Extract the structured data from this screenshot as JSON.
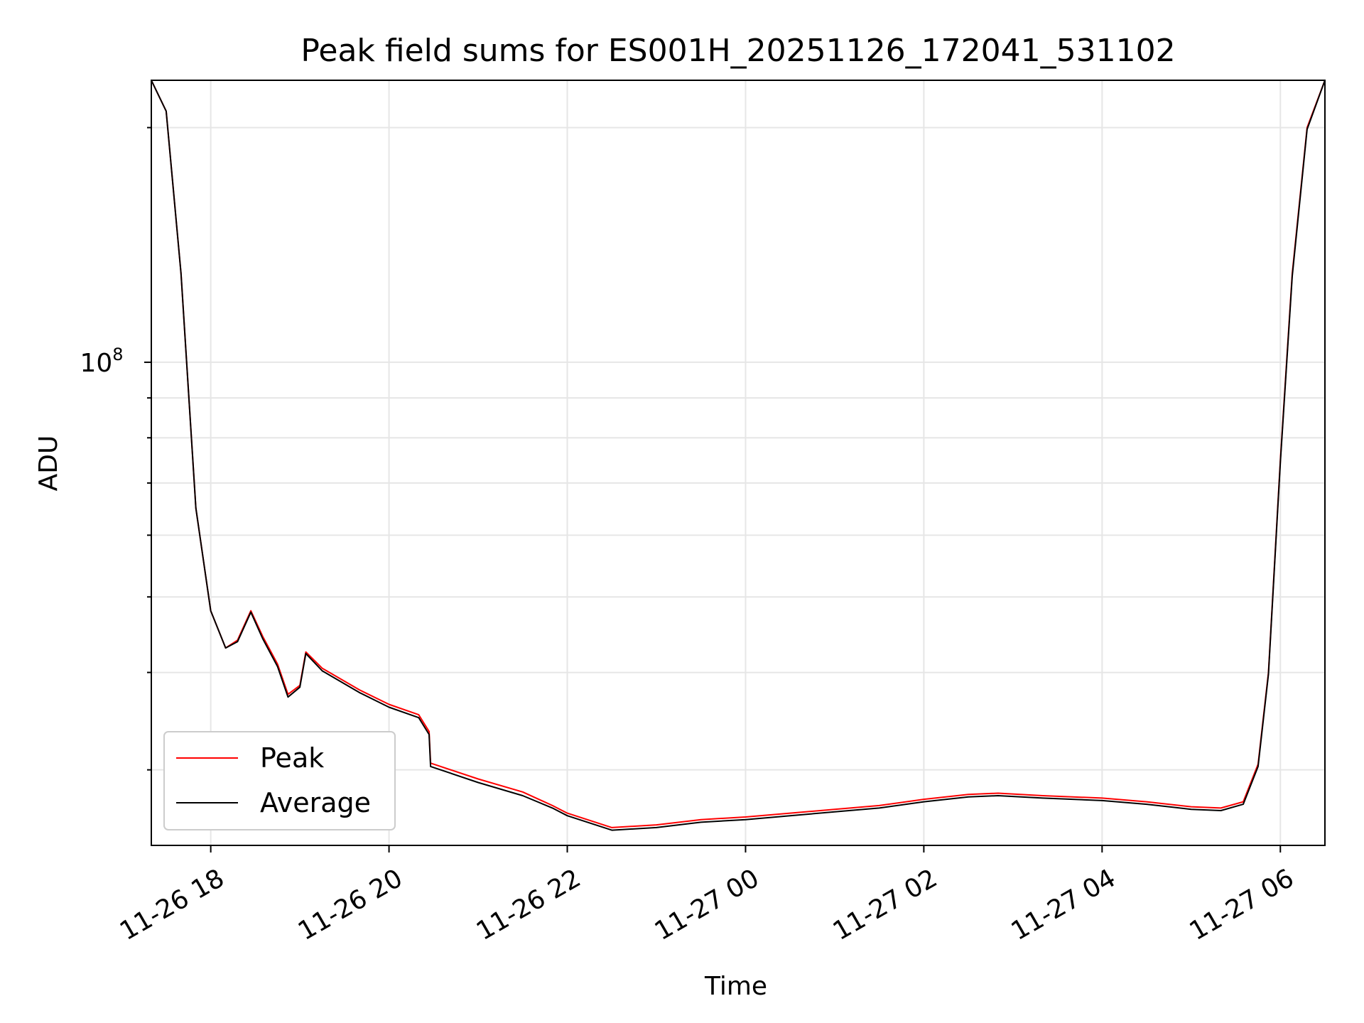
{
  "chart_data": {
    "type": "line",
    "title": "Peak field sums for ES001H_20251126_172041_531102",
    "xlabel": "Time",
    "ylabel": "ADU",
    "yscale": "log",
    "grid": true,
    "legend_position": "lower-left",
    "xlim": [
      "2025-11-26 17:20",
      "2025-11-27 06:30"
    ],
    "ylim": [
      24000000,
      230000000
    ],
    "x_ticks": [
      {
        "value": "2025-11-26 18:00",
        "label": "11-26 18"
      },
      {
        "value": "2025-11-26 20:00",
        "label": "11-26 20"
      },
      {
        "value": "2025-11-26 22:00",
        "label": "11-26 22"
      },
      {
        "value": "2025-11-27 00:00",
        "label": "11-27 00"
      },
      {
        "value": "2025-11-27 02:00",
        "label": "11-27 02"
      },
      {
        "value": "2025-11-27 04:00",
        "label": "11-27 04"
      },
      {
        "value": "2025-11-27 06:00",
        "label": "11-27 06"
      }
    ],
    "y_major_ticks": [
      {
        "value": 100000000,
        "base": "10",
        "exp": "8"
      }
    ],
    "y_minor_ticks": [
      30000000,
      40000000,
      50000000,
      60000000,
      70000000,
      80000000,
      90000000,
      200000000
    ],
    "series": [
      {
        "name": "Peak",
        "color": "#ff0000",
        "points": [
          [
            "2025-11-26 17:20",
            230000000
          ],
          [
            "2025-11-26 17:30",
            210000000
          ],
          [
            "2025-11-26 17:40",
            130000000
          ],
          [
            "2025-11-26 17:50",
            65000000
          ],
          [
            "2025-11-26 18:00",
            48000000
          ],
          [
            "2025-11-26 18:10",
            43000000
          ],
          [
            "2025-11-26 18:18",
            44000000
          ],
          [
            "2025-11-26 18:27",
            48000000
          ],
          [
            "2025-11-26 18:35",
            44500000
          ],
          [
            "2025-11-26 18:45",
            41000000
          ],
          [
            "2025-11-26 18:52",
            37500000
          ],
          [
            "2025-11-26 19:00",
            38500000
          ],
          [
            "2025-11-26 19:04",
            42500000
          ],
          [
            "2025-11-26 19:15",
            40500000
          ],
          [
            "2025-11-26 19:40",
            38000000
          ],
          [
            "2025-11-26 20:00",
            36400000
          ],
          [
            "2025-11-26 20:20",
            35300000
          ],
          [
            "2025-11-26 20:27",
            33600000
          ],
          [
            "2025-11-26 20:28",
            30600000
          ],
          [
            "2025-11-26 21:00",
            29200000
          ],
          [
            "2025-11-26 21:30",
            28100000
          ],
          [
            "2025-11-26 21:50",
            27000000
          ],
          [
            "2025-11-26 22:00",
            26400000
          ],
          [
            "2025-11-26 22:30",
            25300000
          ],
          [
            "2025-11-26 23:00",
            25500000
          ],
          [
            "2025-11-26 23:30",
            25900000
          ],
          [
            "2025-11-27 00:00",
            26100000
          ],
          [
            "2025-11-27 00:30",
            26400000
          ],
          [
            "2025-11-27 01:00",
            26700000
          ],
          [
            "2025-11-27 01:30",
            27000000
          ],
          [
            "2025-11-27 02:00",
            27500000
          ],
          [
            "2025-11-27 02:30",
            27900000
          ],
          [
            "2025-11-27 02:50",
            28000000
          ],
          [
            "2025-11-27 03:20",
            27800000
          ],
          [
            "2025-11-27 04:00",
            27600000
          ],
          [
            "2025-11-27 04:30",
            27300000
          ],
          [
            "2025-11-27 05:00",
            26900000
          ],
          [
            "2025-11-27 05:20",
            26800000
          ],
          [
            "2025-11-27 05:35",
            27300000
          ],
          [
            "2025-11-27 05:45",
            30500000
          ],
          [
            "2025-11-27 05:52",
            40000000
          ],
          [
            "2025-11-27 06:00",
            75000000
          ],
          [
            "2025-11-27 06:08",
            130000000
          ],
          [
            "2025-11-27 06:18",
            200000000
          ],
          [
            "2025-11-27 06:30",
            230000000
          ]
        ]
      },
      {
        "name": "Average",
        "color": "#000000",
        "points": [
          [
            "2025-11-26 17:20",
            230000000
          ],
          [
            "2025-11-26 17:30",
            210000000
          ],
          [
            "2025-11-26 17:40",
            130000000
          ],
          [
            "2025-11-26 17:50",
            65000000
          ],
          [
            "2025-11-26 18:00",
            48000000
          ],
          [
            "2025-11-26 18:10",
            43000000
          ],
          [
            "2025-11-26 18:18",
            43800000
          ],
          [
            "2025-11-26 18:27",
            47800000
          ],
          [
            "2025-11-26 18:35",
            44200000
          ],
          [
            "2025-11-26 18:45",
            40700000
          ],
          [
            "2025-11-26 18:52",
            37200000
          ],
          [
            "2025-11-26 19:00",
            38300000
          ],
          [
            "2025-11-26 19:04",
            42300000
          ],
          [
            "2025-11-26 19:15",
            40200000
          ],
          [
            "2025-11-26 19:40",
            37700000
          ],
          [
            "2025-11-26 20:00",
            36100000
          ],
          [
            "2025-11-26 20:20",
            35000000
          ],
          [
            "2025-11-26 20:27",
            33300000
          ],
          [
            "2025-11-26 20:28",
            30300000
          ],
          [
            "2025-11-26 21:00",
            28900000
          ],
          [
            "2025-11-26 21:30",
            27800000
          ],
          [
            "2025-11-26 21:50",
            26800000
          ],
          [
            "2025-11-26 22:00",
            26200000
          ],
          [
            "2025-11-26 22:30",
            25100000
          ],
          [
            "2025-11-26 23:00",
            25300000
          ],
          [
            "2025-11-26 23:30",
            25700000
          ],
          [
            "2025-11-27 00:00",
            25900000
          ],
          [
            "2025-11-27 00:30",
            26200000
          ],
          [
            "2025-11-27 01:00",
            26500000
          ],
          [
            "2025-11-27 01:30",
            26800000
          ],
          [
            "2025-11-27 02:00",
            27300000
          ],
          [
            "2025-11-27 02:30",
            27700000
          ],
          [
            "2025-11-27 02:50",
            27800000
          ],
          [
            "2025-11-27 03:20",
            27600000
          ],
          [
            "2025-11-27 04:00",
            27400000
          ],
          [
            "2025-11-27 04:30",
            27100000
          ],
          [
            "2025-11-27 05:00",
            26700000
          ],
          [
            "2025-11-27 05:20",
            26600000
          ],
          [
            "2025-11-27 05:35",
            27100000
          ],
          [
            "2025-11-27 05:45",
            30300000
          ],
          [
            "2025-11-27 05:52",
            39800000
          ],
          [
            "2025-11-27 06:00",
            74500000
          ],
          [
            "2025-11-27 06:08",
            129000000
          ],
          [
            "2025-11-27 06:18",
            199000000
          ],
          [
            "2025-11-27 06:30",
            230000000
          ]
        ]
      }
    ]
  }
}
